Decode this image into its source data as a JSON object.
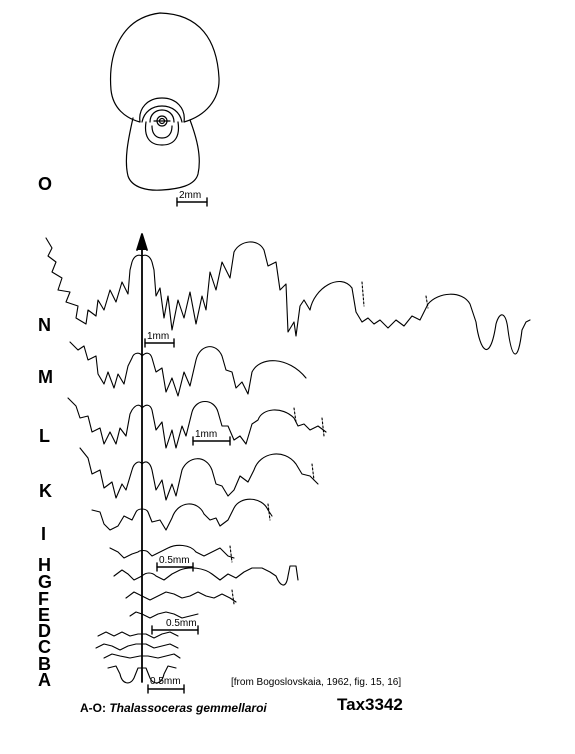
{
  "stages": [
    "O",
    "N",
    "M",
    "L",
    "K",
    "I",
    "H",
    "G",
    "F",
    "E",
    "D",
    "C",
    "B",
    "A"
  ],
  "scale_bars": {
    "cross_section": "2mm",
    "stage_n": "1mm",
    "stage_l": "1mm",
    "stage_h": "0.5mm",
    "stage_d": "0.5mm",
    "stage_a": "0.5mm"
  },
  "source": "[from Bogoslovskaia, 1962, fig. 15, 16]",
  "caption": {
    "prefix": "A-O: ",
    "species": "Thalassoceras gemmellaroi"
  },
  "taxon_id": "Tax3342",
  "colors": {
    "ink": "#000000",
    "background": "#ffffff"
  }
}
